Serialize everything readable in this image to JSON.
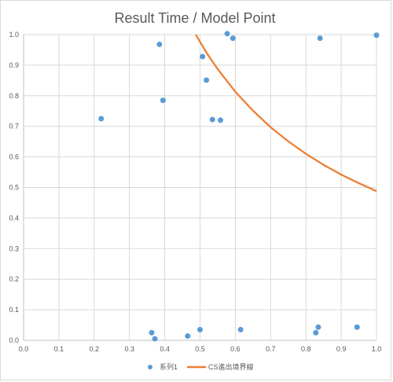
{
  "chart_data": {
    "type": "scatter",
    "title": "Result Time / Model Point",
    "xlim": [
      0,
      1
    ],
    "ylim": [
      0,
      1
    ],
    "x_ticks": [
      "0.0",
      "0.1",
      "0.2",
      "0.3",
      "0.4",
      "0.5",
      "0.6",
      "0.7",
      "0.8",
      "0.9",
      "1.0"
    ],
    "y_ticks": [
      "0.0",
      "0.1",
      "0.2",
      "0.3",
      "0.4",
      "0.5",
      "0.6",
      "0.7",
      "0.8",
      "0.9",
      "1.0"
    ],
    "grid": true,
    "legend_position": "bottom",
    "series": [
      {
        "name": "系列1",
        "kind": "markers",
        "color": "#5b9bd5",
        "points": [
          {
            "x": 0.22,
            "y": 0.725
          },
          {
            "x": 0.385,
            "y": 0.968
          },
          {
            "x": 0.395,
            "y": 0.785
          },
          {
            "x": 0.507,
            "y": 0.928
          },
          {
            "x": 0.518,
            "y": 0.851
          },
          {
            "x": 0.535,
            "y": 0.722
          },
          {
            "x": 0.558,
            "y": 0.72
          },
          {
            "x": 0.577,
            "y": 1.003
          },
          {
            "x": 0.593,
            "y": 0.988
          },
          {
            "x": 0.84,
            "y": 0.988
          },
          {
            "x": 1.0,
            "y": 0.998
          },
          {
            "x": 0.363,
            "y": 0.025
          },
          {
            "x": 0.372,
            "y": 0.005
          },
          {
            "x": 0.465,
            "y": 0.014
          },
          {
            "x": 0.5,
            "y": 0.035
          },
          {
            "x": 0.615,
            "y": 0.035
          },
          {
            "x": 0.828,
            "y": 0.025
          },
          {
            "x": 0.835,
            "y": 0.043
          },
          {
            "x": 0.945,
            "y": 0.043
          }
        ]
      },
      {
        "name": "CS進出境界線",
        "kind": "line",
        "color": "#ed7d31",
        "points": [
          {
            "x": 0.488,
            "y": 1.0
          },
          {
            "x": 0.5,
            "y": 0.976
          },
          {
            "x": 0.52,
            "y": 0.938
          },
          {
            "x": 0.55,
            "y": 0.887
          },
          {
            "x": 0.6,
            "y": 0.813
          },
          {
            "x": 0.65,
            "y": 0.751
          },
          {
            "x": 0.7,
            "y": 0.697
          },
          {
            "x": 0.75,
            "y": 0.651
          },
          {
            "x": 0.8,
            "y": 0.61
          },
          {
            "x": 0.85,
            "y": 0.574
          },
          {
            "x": 0.9,
            "y": 0.542
          },
          {
            "x": 0.95,
            "y": 0.514
          },
          {
            "x": 1.0,
            "y": 0.488
          }
        ]
      }
    ]
  }
}
